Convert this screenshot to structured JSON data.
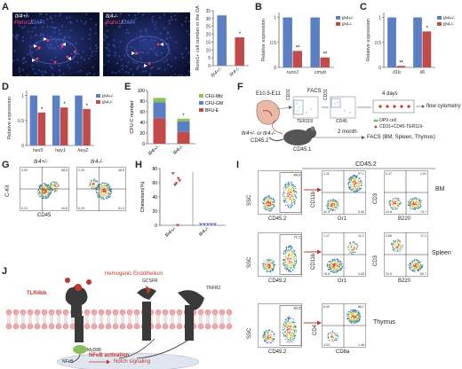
{
  "panels": {
    "A": "A",
    "B": "B",
    "C": "C",
    "D": "D",
    "E": "E",
    "F": "F",
    "G": "G",
    "H": "H",
    "I": "I",
    "J": "J"
  },
  "panel_a": {
    "image_left_label_genotype": "tlr4+/-",
    "image_left_label_stain_red": "Runx1",
    "image_left_label_stain_sep": "/",
    "image_left_label_stain_blue": "DAPI",
    "image_right_label_genotype": "tlr4-/-",
    "image_right_label_stain_red": "Runx1",
    "image_right_label_stain_sep": "/",
    "image_right_label_stain_blue": "DAPI",
    "significance": "*"
  },
  "chart_data": [
    {
      "id": "A",
      "type": "bar",
      "categories": [
        "tlr4+/-",
        "tlr4-/-"
      ],
      "series": [
        {
          "name": "tlr4+/-",
          "values": [
            32,
            18
          ]
        }
      ],
      "ylabel": "Runx1+ cell number in the DA",
      "yticks": [
        0,
        5,
        10,
        15,
        20,
        25,
        30,
        35
      ],
      "ylim": [
        0,
        35
      ],
      "colors": [
        "#5b7fc4",
        "#c24a48"
      ]
    },
    {
      "id": "B",
      "type": "bar",
      "categories": [
        "runx1",
        "cmyb"
      ],
      "series": [
        {
          "name": "tlr4+/-",
          "values": [
            1,
            1
          ]
        },
        {
          "name": "tlr4-/-",
          "values": [
            0.33,
            0.2
          ]
        }
      ],
      "ylabel": "Relative expression",
      "yticks": [
        0,
        0.5,
        1
      ],
      "ylim": [
        0,
        1.1
      ],
      "legend": [
        "tlr4+/-",
        "tlr4-/-"
      ],
      "significance": [
        "**",
        "**"
      ]
    },
    {
      "id": "C",
      "type": "bar",
      "categories": [
        "il1b",
        "il6"
      ],
      "series": [
        {
          "name": "tlr4+/-",
          "values": [
            1,
            1
          ]
        },
        {
          "name": "tlr4-/-",
          "values": [
            0.03,
            0.72
          ]
        }
      ],
      "ylabel": "Relative expression",
      "yticks": [
        0,
        0.5,
        1
      ],
      "ylim": [
        0,
        1.1
      ],
      "legend": [
        "tlr4+/-",
        "tlr4-/-"
      ],
      "significance": [
        "**",
        "*"
      ]
    },
    {
      "id": "D",
      "type": "bar",
      "categories": [
        "hes5",
        "hey1",
        "hey2"
      ],
      "series": [
        {
          "name": "tlr4+/-",
          "values": [
            1,
            1,
            1
          ]
        },
        {
          "name": "tlr4-/-",
          "values": [
            0.66,
            0.76,
            0.73
          ]
        }
      ],
      "ylabel": "Relative expression",
      "yticks": [
        0,
        0.5,
        1
      ],
      "ylim": [
        0,
        1.1
      ],
      "legend": [
        "tlr4+/-",
        "tlr4-/-"
      ],
      "significance": [
        "*",
        "*",
        "*"
      ]
    },
    {
      "id": "E",
      "type": "bar",
      "categories": [
        "tlr4+/-",
        "tlr4-/-"
      ],
      "series": [
        {
          "name": "BFU-E",
          "values": [
            48,
            22
          ]
        },
        {
          "name": "CFU-GM",
          "values": [
            30,
            20
          ]
        },
        {
          "name": "CFU-Mix",
          "values": [
            8,
            5
          ]
        }
      ],
      "ylabel": "CFU-C number",
      "yticks": [
        0,
        20,
        40,
        60,
        80,
        100
      ],
      "ylim": [
        0,
        100
      ],
      "legend": [
        "CFU-Mix",
        "CFU-GM",
        "BFU-E"
      ],
      "significance": [
        "*"
      ]
    },
    {
      "id": "H",
      "type": "scatter",
      "categories": [
        "tlr4+/-",
        "tlr4-/-"
      ],
      "series": [
        {
          "name": "tlr4+/-",
          "values": [
            73,
            66,
            57,
            63,
            59,
            0
          ]
        },
        {
          "name": "tlr4-/-",
          "values": [
            0,
            0,
            0,
            0,
            0
          ]
        }
      ],
      "ylabel": "Chimerism(%)",
      "yticks": [
        0,
        20,
        40,
        60,
        80
      ],
      "ylim": [
        0,
        80
      ]
    }
  ],
  "panel_f": {
    "stage": "E10.5-E11",
    "donor": "tlr4+/- or tlr4-/-",
    "donor_strain": "CD45.2",
    "facs": "FACS",
    "gate_y1": "CD31",
    "gate_x1": "TER119",
    "gate_y2": "CD31",
    "gate_x2": "CD45",
    "culture": "4 days",
    "op9": "OP9 cell",
    "sorted": "CD31+CD45-TER119-",
    "flow": "flow cytometry",
    "recipient": "CD45.1",
    "time": "2 month",
    "readout": "FACS (BM, Spleen, Thymus)"
  },
  "panel_g": {
    "left_title": "tlr4+/-",
    "right_title": "tlr4-/-",
    "ylabel": "C-Kit",
    "xlabel": "CD45",
    "left_q": [
      "0.53",
      "58.5",
      "0.21",
      "40.8"
    ],
    "right_q": [
      "0.26",
      "48.5",
      "0.29",
      "51.0"
    ]
  },
  "panel_i": {
    "header": "CD45.2",
    "rows": [
      "BM",
      "Spleen",
      "Thymus"
    ],
    "col1_x": "CD45.2",
    "col1_y": "SSC",
    "bm_col2": {
      "x": "Gr1",
      "y": "CD11b"
    },
    "bm_col3": {
      "x": "B220",
      "y": "CD3"
    },
    "sp_col2": {
      "x": "Gr1",
      "y": "CD11b"
    },
    "sp_col3": {
      "x": "B220",
      "y": "CD3"
    },
    "th_col2": {
      "x": "CD8a",
      "y": "CD4"
    },
    "vals": {
      "bm1": "64.0",
      "bm2": [
        "1.11",
        "37.1",
        "52.4",
        "9.36"
      ],
      "bm3": [
        "0.47",
        "1.01",
        "23.8",
        "74.7"
      ],
      "sp1": "71.1",
      "sp2": [
        "1.17",
        "12.2",
        "76.8",
        "9.83"
      ],
      "sp3": [
        "0.66",
        "17.1",
        "31.5",
        "50.7"
      ],
      "th1": "63.3",
      "th2": [
        "6.40",
        "88.1",
        "4.04",
        "1.45"
      ]
    }
  },
  "panel_j": {
    "title": "Hemogenic Endothelium",
    "tlr": "TLR4bb",
    "gcsfr": "GCSFR",
    "tnfr": "TNFR2",
    "myd88": "MyD88",
    "nfkb_act": "NFκB activation",
    "nfkb": "NFκB",
    "notch": "Notch signaling"
  },
  "colors": {
    "blue": "#5b7fc4",
    "red": "#c24a48",
    "green": "#8cbf5a",
    "rbc": "#c0392b"
  }
}
